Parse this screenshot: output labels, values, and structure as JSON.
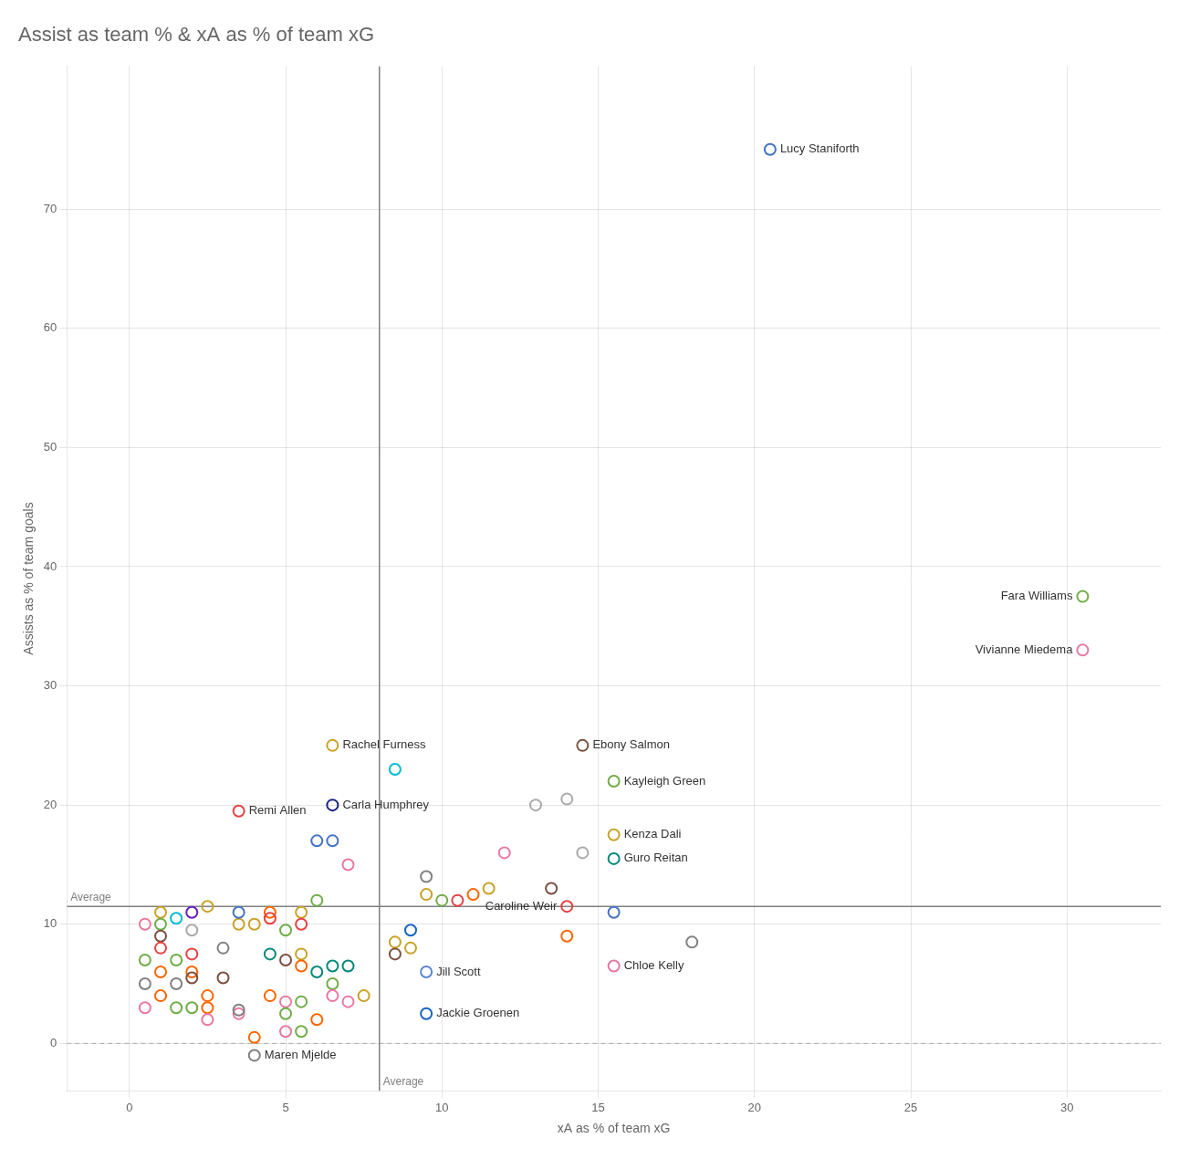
{
  "chart_data": {
    "type": "scatter",
    "title": "Assist as team % & xA as % of team xG",
    "xlabel": "xA as % of team xG",
    "ylabel": "Assists as % of team goals",
    "xlim": [
      -2,
      33
    ],
    "ylim": [
      -4,
      82
    ],
    "xticks": [
      0,
      5,
      10,
      15,
      20,
      25,
      30
    ],
    "yticks": [
      0,
      10,
      20,
      30,
      40,
      50,
      60,
      70
    ],
    "grid": true,
    "marker": "circle",
    "lines": [
      {
        "y": 0,
        "color": "#aaaaaa",
        "line_style": "dashed"
      },
      {
        "x": 8.0,
        "color": "#808080",
        "line_style": "solid",
        "text": "Average"
      },
      {
        "y": 11.5,
        "color": "#808080",
        "line_style": "solid",
        "text": "Average"
      }
    ],
    "series": [
      {
        "x": [
          8.5,
          9.5,
          13.0,
          14.0,
          12.0,
          14.5,
          13.5,
          11.5,
          10.0,
          9.5,
          10.5,
          11.0,
          9.0,
          8.5,
          8.5,
          9.0,
          14.0,
          18.0,
          15.5,
          6.5,
          6.0,
          7.0,
          5.5,
          4.5,
          4.5,
          5.5,
          5.0,
          6.0,
          4.0,
          3.5,
          5.0,
          5.5,
          4.5,
          5.5,
          6.5,
          6.0,
          7.0,
          6.5,
          6.5,
          7.5,
          7.0,
          4.5,
          5.0,
          5.5,
          5.0,
          6.0,
          3.5,
          3.5,
          2.0,
          1.5,
          1.0,
          1.0,
          0.5,
          1.0,
          2.0,
          1.0,
          2.0,
          0.5,
          1.5,
          1.0,
          2.0,
          2.0,
          0.5,
          1.5,
          1.0,
          2.5,
          2.5,
          2.0,
          1.5,
          0.5,
          2.5,
          3.5,
          3.0,
          3.0,
          4.0,
          5.0,
          5.5,
          2.5
        ],
        "y": [
          23,
          14,
          20,
          20.5,
          16,
          16,
          13,
          13,
          12,
          12.5,
          12,
          12.5,
          9.5,
          8.5,
          7.5,
          8.0,
          9,
          8.5,
          11,
          17,
          17,
          15,
          11,
          11,
          10.5,
          10,
          9.5,
          12,
          10,
          10,
          7,
          7.5,
          7.5,
          6.5,
          6.5,
          6,
          6.5,
          5,
          4,
          4,
          3.5,
          4,
          3.5,
          3.5,
          2.5,
          2,
          2.5,
          2.8,
          11,
          10.5,
          11,
          10,
          10,
          9,
          9.5,
          8,
          7.5,
          7,
          7,
          6,
          6,
          5.5,
          5,
          5,
          4,
          4,
          3,
          3,
          3,
          3,
          11.5,
          11,
          8,
          5.5,
          0.5,
          1,
          1,
          2
        ],
        "colors": [
          "#00bcd4",
          "#808080",
          "#aaaaaa",
          "#aaaaaa",
          "#e879a0",
          "#aaaaaa",
          "#7b5040",
          "#c9a227",
          "#70ad47",
          "#c9a227",
          "#e84040",
          "#ff6600",
          "#1565c0",
          "#c9a227",
          "#7b5040",
          "#c9a227",
          "#ff6600",
          "#808080",
          "#4472c4",
          "#4472c4",
          "#4472c4",
          "#e879a0",
          "#c9a227",
          "#ff6600",
          "#e84040",
          "#e84040",
          "#70ad47",
          "#70ad47",
          "#c9a227",
          "#c9a227",
          "#7b5040",
          "#c9a227",
          "#00897b",
          "#ff6600",
          "#00897b",
          "#00897b",
          "#00897b",
          "#70ad47",
          "#e879a0",
          "#c9a227",
          "#e879a0",
          "#ff6600",
          "#e879a0",
          "#70ad47",
          "#70ad47",
          "#ff6600",
          "#e879a0",
          "#808080",
          "#6a1bba",
          "#00bcd4",
          "#c9a227",
          "#70ad47",
          "#e879a0",
          "#7b5040",
          "#aaaaaa",
          "#e84040",
          "#e84040",
          "#70ad47",
          "#70ad47",
          "#ff6600",
          "#ff6600",
          "#7b5040",
          "#808080",
          "#808080",
          "#ff6600",
          "#ff6600",
          "#ff6600",
          "#70ad47",
          "#70ad47",
          "#e879a0",
          "#c9a227",
          "#4472c4",
          "#808080",
          "#7b5040",
          "#ff6600",
          "#e879a0",
          "#70ad47",
          "#e879a0"
        ]
      },
      {
        "x": [
          20.5,
          30.5,
          30.5,
          6.5,
          14.5,
          15.5,
          3.5,
          6.5,
          15.5,
          15.5,
          14.0,
          15.5,
          9.5,
          9.5,
          4.0
        ],
        "y": [
          75,
          37.5,
          33,
          25,
          25,
          22,
          19.5,
          20,
          17.5,
          15.5,
          11.5,
          6.5,
          6.0,
          2.5,
          -1.0
        ],
        "colors": [
          "#4472c4",
          "#70ad47",
          "#e879a0",
          "#c9a227",
          "#7b5040",
          "#70ad47",
          "#e84040",
          "#1a237e",
          "#c9a227",
          "#00897b",
          "#e84040",
          "#e879a0",
          "#5c85d6",
          "#1565c0",
          "#808080"
        ],
        "labels": [
          "Lucy Staniforth",
          "Fara Williams",
          "Vivianne Miedema",
          "Rachel Furness",
          "Ebony Salmon",
          "Kayleigh Green",
          "Remi Allen",
          "Carla Humphrey",
          "Kenza Dali",
          "Guro Reitan",
          "Caroline Weir",
          "Chloe Kelly",
          "Jill Scott",
          "Jackie Groenen",
          "Maren Mjelde"
        ]
      }
    ]
  }
}
